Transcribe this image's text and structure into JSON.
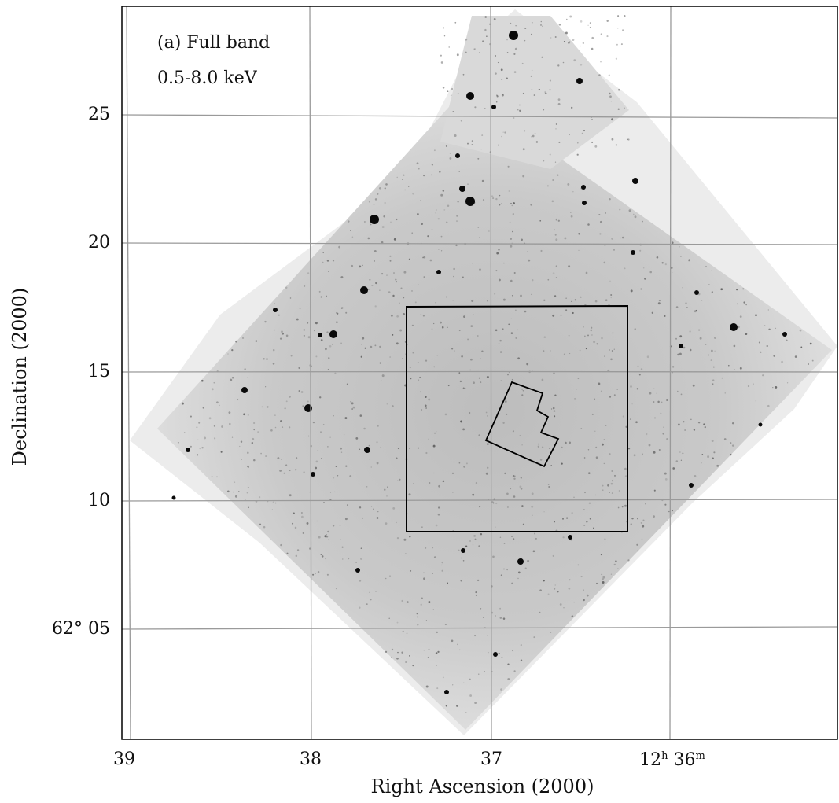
{
  "panel_label": "(a) Full band",
  "energy_band": "0.5-8.0 keV",
  "axes": {
    "xlabel": "Right Ascension (2000)",
    "ylabel": "Declination (2000)",
    "x_ticks": [
      {
        "label": "39",
        "ra_min": 39
      },
      {
        "label": "38",
        "ra_min": 38
      },
      {
        "label": "37",
        "ra_min": 37
      },
      {
        "label": "12h 36m",
        "ra_min": 36
      }
    ],
    "y_ticks": [
      {
        "label": "25",
        "dec_arcmin": 25
      },
      {
        "label": "20",
        "dec_arcmin": 20
      },
      {
        "label": "15",
        "dec_arcmin": 15
      },
      {
        "label": "10",
        "dec_arcmin": 10
      },
      {
        "label": "62° 05",
        "dec_arcmin": 5
      }
    ],
    "grid": true,
    "x_direction": "RA decreases to the right"
  },
  "image": {
    "type": "X-ray counts image (inverted grayscale)",
    "footprint": "rotated square mosaic",
    "overlays": [
      "inner square outline",
      "small irregular outline near center"
    ]
  }
}
